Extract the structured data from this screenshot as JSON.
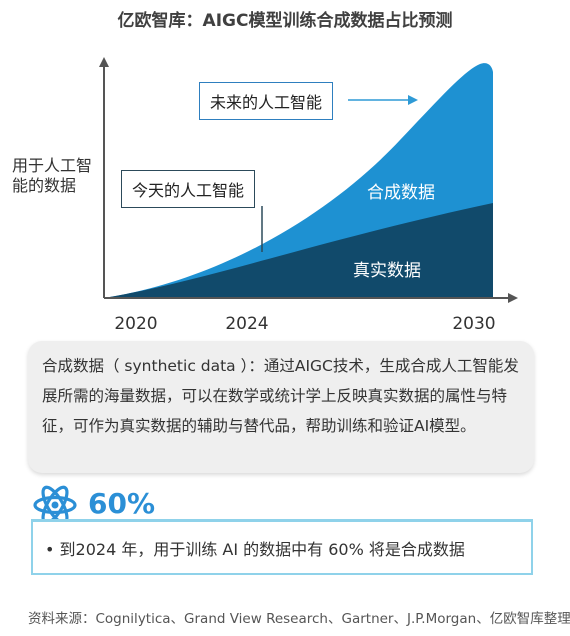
{
  "title": "亿欧智库：AIGC模型训练合成数据占比预测",
  "chart_data": {
    "type": "area",
    "title": "亿欧智库：AIGC模型训练合成数据占比预测",
    "ylabel": "用于人工智能的数据",
    "x_ticks": [
      "2020",
      "2024",
      "2030"
    ],
    "series": [
      {
        "name": "真实数据",
        "color": "#114a6b"
      },
      {
        "name": "合成数据",
        "color": "#1e91d2"
      }
    ],
    "callouts": {
      "future": "未来的人工智能",
      "today": "今天的人工智能"
    },
    "grid": false,
    "legend": "none"
  },
  "definition": {
    "text": "合成数据（ synthetic data ）：通过AIGC技术，生成合成人工智能发展所需的海量数据，可以在数学或统计学上反映真实数据的属性与特征，可作为真实数据的辅助与替代品，帮助训练和验证AI模型。"
  },
  "highlight": {
    "value": "60%",
    "icon": "atom-icon",
    "fact": "•  到2024 年，用于训练 AI 的数据中有 60% 将是合成数据"
  },
  "source": "资料来源：Cognilytica、Grand View Research、Gartner、J.P.Morgan、亿欧智库整理",
  "colors": {
    "synthetic": "#1e91d2",
    "real": "#114a6b",
    "accent": "#2b8fd6",
    "callout_arrow": "#2e9ad6"
  }
}
